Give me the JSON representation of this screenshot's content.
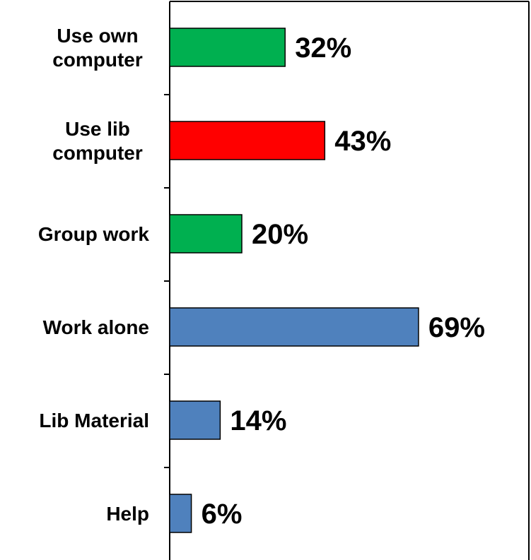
{
  "chart_data": {
    "type": "bar",
    "orientation": "horizontal",
    "categories": [
      "Use own computer",
      "Use lib computer",
      "Group work",
      "Work alone",
      "Lib Material",
      "Help"
    ],
    "values": [
      32,
      43,
      20,
      69,
      14,
      6
    ],
    "data_labels": [
      "32%",
      "43%",
      "20%",
      "69%",
      "14%",
      "6%"
    ],
    "bar_colors": [
      "#00B050",
      "#FF0000",
      "#00B050",
      "#4F81BD",
      "#4F81BD",
      "#4F81BD"
    ],
    "title": "",
    "xlabel": "",
    "ylabel": "",
    "xlim": [
      0,
      100
    ],
    "grid": false,
    "legend": "none"
  }
}
